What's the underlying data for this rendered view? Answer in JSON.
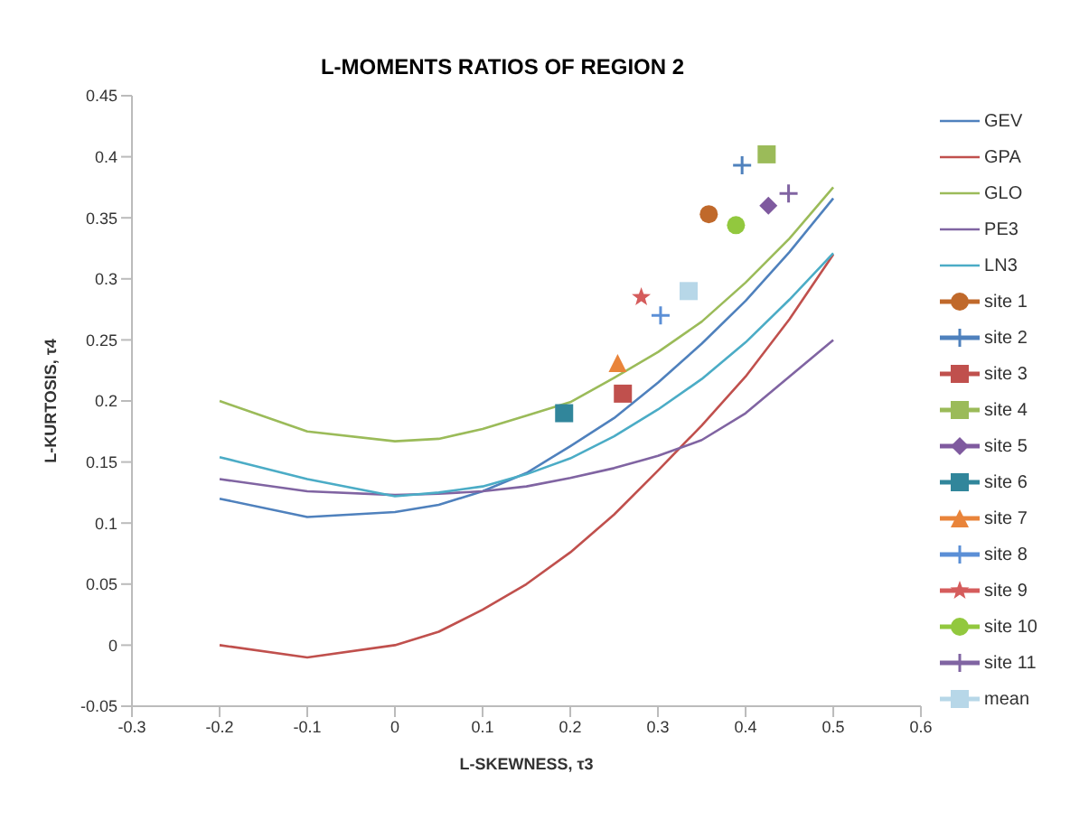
{
  "chart_data": {
    "type": "scatter",
    "title": "L-MOMENTS RATIOS OF REGION 2",
    "xlabel": "L-SKEWNESS, τ3",
    "ylabel": "L-KURTOSIS, τ4",
    "xlim": [
      -0.3,
      0.6
    ],
    "xticks": [
      -0.3,
      -0.2,
      -0.1,
      0,
      0.1,
      0.2,
      0.3,
      0.4,
      0.5,
      0.6
    ],
    "ylim": [
      -0.05,
      0.45
    ],
    "yticks": [
      -0.05,
      0,
      0.05,
      0.1,
      0.15,
      0.2,
      0.25,
      0.3,
      0.35,
      0.4,
      0.45
    ],
    "grid": false,
    "legend": "right",
    "series": [
      {
        "name": "GEV",
        "type": "line",
        "color": "#4f81bd",
        "marker": "none",
        "x": [
          -0.2,
          -0.1,
          0,
          0.05,
          0.1,
          0.15,
          0.2,
          0.25,
          0.3,
          0.35,
          0.4,
          0.45,
          0.5
        ],
        "values": [
          0.12,
          0.105,
          0.109,
          0.115,
          0.126,
          0.141,
          0.163,
          0.186,
          0.215,
          0.247,
          0.282,
          0.322,
          0.366
        ]
      },
      {
        "name": "GPA",
        "type": "line",
        "color": "#c0504d",
        "marker": "none",
        "x": [
          -0.2,
          -0.1,
          0,
          0.05,
          0.1,
          0.15,
          0.2,
          0.25,
          0.3,
          0.35,
          0.4,
          0.45,
          0.5
        ],
        "values": [
          0,
          -0.01,
          0,
          0.011,
          0.029,
          0.05,
          0.076,
          0.107,
          0.143,
          0.18,
          0.22,
          0.267,
          0.32
        ]
      },
      {
        "name": "GLO",
        "type": "line",
        "color": "#9bbb59",
        "marker": "none",
        "x": [
          -0.2,
          -0.1,
          0,
          0.05,
          0.1,
          0.15,
          0.2,
          0.25,
          0.3,
          0.35,
          0.4,
          0.45,
          0.5
        ],
        "values": [
          0.2,
          0.175,
          0.167,
          0.169,
          0.177,
          0.188,
          0.199,
          0.219,
          0.24,
          0.265,
          0.297,
          0.333,
          0.375
        ]
      },
      {
        "name": "PE3",
        "type": "line",
        "color": "#8064a2",
        "marker": "none",
        "x": [
          -0.2,
          -0.1,
          0,
          0.05,
          0.1,
          0.15,
          0.2,
          0.25,
          0.3,
          0.35,
          0.4,
          0.45,
          0.5
        ],
        "values": [
          0.136,
          0.126,
          0.123,
          0.124,
          0.126,
          0.13,
          0.137,
          0.145,
          0.155,
          0.168,
          0.19,
          0.22,
          0.25
        ]
      },
      {
        "name": "LN3",
        "type": "line",
        "color": "#4bacc6",
        "marker": "none",
        "x": [
          -0.2,
          -0.1,
          0,
          0.05,
          0.1,
          0.15,
          0.2,
          0.25,
          0.3,
          0.35,
          0.4,
          0.45,
          0.5
        ],
        "values": [
          0.154,
          0.136,
          0.122,
          0.125,
          0.13,
          0.14,
          0.153,
          0.171,
          0.193,
          0.218,
          0.248,
          0.283,
          0.321
        ]
      },
      {
        "name": "site 1",
        "color": "#c0692b",
        "marker": "circle",
        "x": [
          0.358
        ],
        "values": [
          0.353
        ]
      },
      {
        "name": "site 2",
        "color": "#4f81bd",
        "marker": "cross",
        "x": [
          0.396
        ],
        "values": [
          0.393
        ]
      },
      {
        "name": "site 3",
        "color": "#c0504d",
        "marker": "square",
        "x": [
          0.26
        ],
        "values": [
          0.206
        ]
      },
      {
        "name": "site 4",
        "color": "#9bbb59",
        "marker": "square",
        "x": [
          0.424
        ],
        "values": [
          0.402
        ]
      },
      {
        "name": "site 5",
        "color": "#7f5a9f",
        "marker": "diamond",
        "x": [
          0.426
        ],
        "values": [
          0.36
        ]
      },
      {
        "name": "site 6",
        "color": "#31869b",
        "marker": "square",
        "x": [
          0.193
        ],
        "values": [
          0.19
        ]
      },
      {
        "name": "site 7",
        "color": "#e9843a",
        "marker": "triangle",
        "x": [
          0.254
        ],
        "values": [
          0.231
        ]
      },
      {
        "name": "site 8",
        "color": "#5b8fd6",
        "marker": "cross",
        "x": [
          0.303
        ],
        "values": [
          0.27
        ]
      },
      {
        "name": "site 9",
        "color": "#d55c5c",
        "marker": "star",
        "x": [
          0.281
        ],
        "values": [
          0.285
        ]
      },
      {
        "name": "site 10",
        "color": "#92c83e",
        "marker": "circle",
        "x": [
          0.389
        ],
        "values": [
          0.344
        ]
      },
      {
        "name": "site 11",
        "color": "#8064a2",
        "marker": "cross",
        "x": [
          0.449
        ],
        "values": [
          0.37
        ]
      },
      {
        "name": "mean",
        "color": "#b7d7e8",
        "marker": "square",
        "x": [
          0.335
        ],
        "values": [
          0.29
        ]
      }
    ]
  }
}
